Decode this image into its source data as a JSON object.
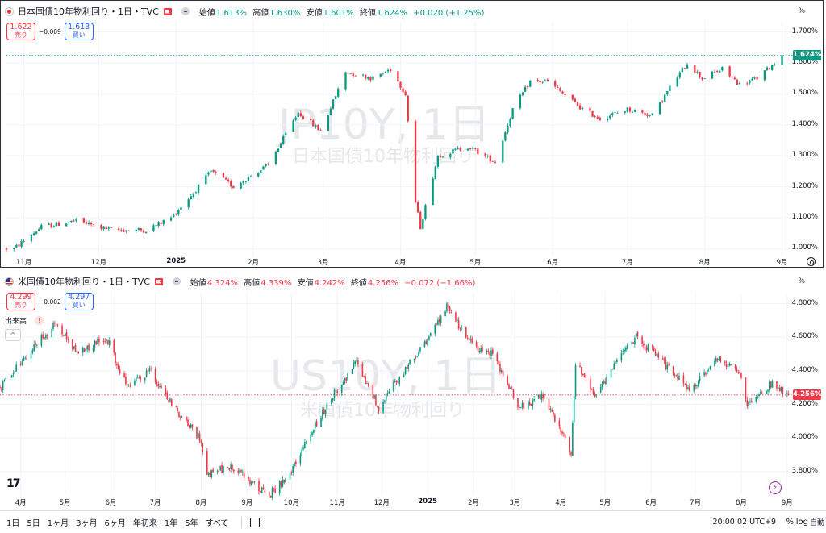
{
  "colors": {
    "up": "#089981",
    "down": "#f23645",
    "grid": "#f0f3fa",
    "jp_last": "#089981",
    "us_last": "#f23645"
  },
  "jp": {
    "title": "日本国債10年物利回り・1日・TVC",
    "ohlc": {
      "open_label": "始値",
      "open": "1.613%",
      "high_label": "高値",
      "high": "1.630%",
      "low_label": "安値",
      "low": "1.601%",
      "close_label": "終値",
      "close": "1.624%",
      "change": "+0.020 (+1.25%)"
    },
    "sell_price": "1.622",
    "sell_label": "売り",
    "spread": "−0.009",
    "buy_price": "1.613",
    "buy_label": "買い",
    "unit": "%",
    "watermark": "JP10Y, 1日",
    "watermark_sub": "日本国債10年物利回り",
    "last_price": "1.624%",
    "y_ticks": [
      "1.700%",
      "1.600%",
      "1.500%",
      "1.400%",
      "1.300%",
      "1.200%",
      "1.100%",
      "1.000%"
    ],
    "x_ticks": [
      "11月",
      "12月",
      "2025",
      "2月",
      "3月",
      "4月",
      "5月",
      "6月",
      "7月",
      "8月",
      "9月"
    ]
  },
  "us": {
    "title": "米国債10年物利回り・1日・TVC",
    "ohlc": {
      "open_label": "始値",
      "open": "4.324%",
      "high_label": "高値",
      "high": "4.339%",
      "low_label": "安値",
      "low": "4.242%",
      "close_label": "終値",
      "close": "4.256%",
      "change": "−0.072 (−1.66%)"
    },
    "sell_price": "4.299",
    "sell_label": "売り",
    "spread": "−0.002",
    "buy_price": "4.297",
    "buy_label": "買い",
    "unit": "%",
    "volume_label": "出来高",
    "watermark": "US10Y, 1日",
    "watermark_sub": "米国債10年物利回り",
    "last_price": "4.256%",
    "y_ticks": [
      "4.800%",
      "4.600%",
      "4.400%",
      "4.200%",
      "4.000%",
      "3.800%"
    ],
    "x_ticks": [
      "4月",
      "5月",
      "6月",
      "7月",
      "8月",
      "9月",
      "10月",
      "11月",
      "12月",
      "2025",
      "2月",
      "3月",
      "4月",
      "5月",
      "6月",
      "7月",
      "8月",
      "9月"
    ]
  },
  "bottom": {
    "ranges": [
      "1日",
      "5日",
      "1ヶ月",
      "3ヶ月",
      "6ヶ月",
      "年初来",
      "1年",
      "5年",
      "すべて"
    ],
    "time": "20:00:02 UTC+9",
    "pct": "%",
    "log": "log",
    "auto": "自動"
  },
  "chart_data": [
    {
      "type": "candlestick",
      "title": "日本国債10年物利回り・1日・TVC",
      "ylim": [
        0.98,
        1.73
      ],
      "x_range": [
        "2024-10-25",
        "2025-09-06"
      ],
      "close_path": [
        [
          "2024-10-28",
          1.0
        ],
        [
          "2024-11-08",
          1.07
        ],
        [
          "2024-11-22",
          1.09
        ],
        [
          "2024-12-06",
          1.06
        ],
        [
          "2024-12-20",
          1.06
        ],
        [
          "2024-12-30",
          1.1
        ],
        [
          "2025-01-08",
          1.18
        ],
        [
          "2025-01-15",
          1.25
        ],
        [
          "2025-01-24",
          1.2
        ],
        [
          "2025-02-07",
          1.27
        ],
        [
          "2025-02-19",
          1.44
        ],
        [
          "2025-02-28",
          1.38
        ],
        [
          "2025-03-10",
          1.57
        ],
        [
          "2025-03-21",
          1.55
        ],
        [
          "2025-03-28",
          1.58
        ],
        [
          "2025-04-03",
          1.5
        ],
        [
          "2025-04-07",
          1.15
        ],
        [
          "2025-04-09",
          1.07
        ],
        [
          "2025-04-16",
          1.3
        ],
        [
          "2025-04-28",
          1.33
        ],
        [
          "2025-05-09",
          1.28
        ],
        [
          "2025-05-16",
          1.45
        ],
        [
          "2025-05-23",
          1.54
        ],
        [
          "2025-05-30",
          1.54
        ],
        [
          "2025-06-13",
          1.45
        ],
        [
          "2025-06-20",
          1.42
        ],
        [
          "2025-07-01",
          1.45
        ],
        [
          "2025-07-11",
          1.43
        ],
        [
          "2025-07-18",
          1.52
        ],
        [
          "2025-07-25",
          1.6
        ],
        [
          "2025-07-31",
          1.55
        ],
        [
          "2025-08-08",
          1.58
        ],
        [
          "2025-08-15",
          1.53
        ],
        [
          "2025-08-22",
          1.55
        ],
        [
          "2025-09-01",
          1.62
        ]
      ],
      "last": 1.624
    },
    {
      "type": "candlestick",
      "title": "米国債10年物利回り・1日・TVC",
      "ylim": [
        3.66,
        4.86
      ],
      "x_range": [
        "2024-03-18",
        "2025-09-06"
      ],
      "close_path": [
        [
          "2024-03-18",
          4.3
        ],
        [
          "2024-04-10",
          4.55
        ],
        [
          "2024-04-25",
          4.68
        ],
        [
          "2024-05-10",
          4.5
        ],
        [
          "2024-05-29",
          4.6
        ],
        [
          "2024-06-12",
          4.3
        ],
        [
          "2024-06-28",
          4.4
        ],
        [
          "2024-07-12",
          4.2
        ],
        [
          "2024-07-31",
          4.0
        ],
        [
          "2024-08-05",
          3.78
        ],
        [
          "2024-08-20",
          3.83
        ],
        [
          "2024-09-16",
          3.66
        ],
        [
          "2024-10-01",
          3.8
        ],
        [
          "2024-10-15",
          4.05
        ],
        [
          "2024-10-31",
          4.28
        ],
        [
          "2024-11-14",
          4.45
        ],
        [
          "2024-11-29",
          4.18
        ],
        [
          "2024-12-12",
          4.35
        ],
        [
          "2024-12-31",
          4.58
        ],
        [
          "2025-01-14",
          4.78
        ],
        [
          "2025-01-31",
          4.55
        ],
        [
          "2025-02-14",
          4.5
        ],
        [
          "2025-03-04",
          4.18
        ],
        [
          "2025-03-20",
          4.25
        ],
        [
          "2025-04-04",
          4.0
        ],
        [
          "2025-04-08",
          3.88
        ],
        [
          "2025-04-11",
          4.45
        ],
        [
          "2025-04-25",
          4.25
        ],
        [
          "2025-05-14",
          4.52
        ],
        [
          "2025-05-22",
          4.6
        ],
        [
          "2025-06-09",
          4.45
        ],
        [
          "2025-06-27",
          4.28
        ],
        [
          "2025-07-15",
          4.48
        ],
        [
          "2025-07-31",
          4.38
        ],
        [
          "2025-08-05",
          4.2
        ],
        [
          "2025-08-22",
          4.33
        ],
        [
          "2025-09-02",
          4.26
        ]
      ],
      "last": 4.256
    }
  ]
}
